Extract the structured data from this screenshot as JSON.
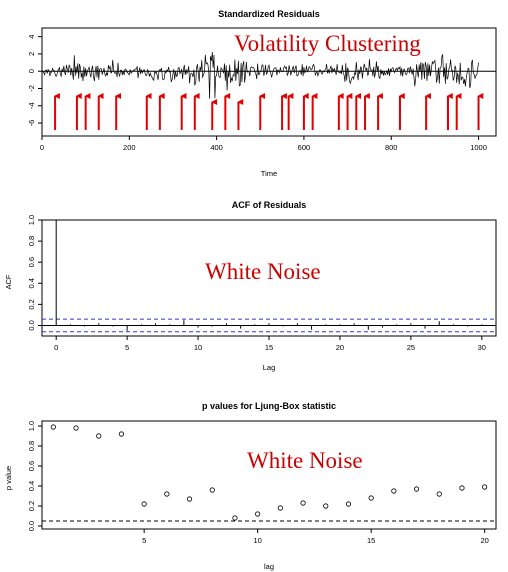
{
  "chart_data": [
    {
      "type": "line",
      "title": "Standardized Residuals",
      "xlabel": "Time",
      "ylabel": "",
      "xlim": [
        0,
        1040
      ],
      "ylim": [
        -7.5,
        5
      ],
      "xticks": [
        0,
        200,
        400,
        600,
        800,
        1000
      ],
      "yticks": [
        -6,
        -4,
        -2,
        0,
        2,
        4
      ],
      "annotation": "Volatility Clustering",
      "annotation_color": "#e00000",
      "arrow_color": "#e00000",
      "arrows_at": [
        30,
        80,
        100,
        130,
        170,
        240,
        270,
        320,
        350,
        390,
        420,
        450,
        500,
        550,
        565,
        600,
        620,
        680,
        700,
        720,
        740,
        770,
        820,
        880,
        930,
        950,
        1000
      ],
      "series": [
        {
          "x": [
            0,
            20,
            40,
            60,
            70,
            75,
            80,
            90,
            100,
            120,
            140,
            160,
            180,
            200,
            240,
            260,
            280,
            300,
            320,
            340,
            360,
            380,
            385,
            390,
            395,
            400,
            410,
            420,
            430,
            440,
            450,
            460,
            480,
            500,
            520,
            540,
            560,
            580,
            600,
            620,
            640,
            660,
            680,
            700,
            720,
            740,
            760,
            780,
            800,
            820,
            840,
            860,
            880,
            900,
            920,
            940,
            960,
            980,
            1000
          ],
          "upper": [
            0.5,
            0.8,
            1,
            1.3,
            1.8,
            3.5,
            2,
            1.5,
            1.2,
            1,
            1.3,
            1.5,
            1.2,
            1,
            0.8,
            1.2,
            1.5,
            1.3,
            1.2,
            1.5,
            1.5,
            4,
            4.5,
            5,
            4.5,
            4,
            3,
            2.5,
            2,
            1.8,
            2,
            2.5,
            1.8,
            1.5,
            1,
            0.8,
            1.2,
            1,
            1.5,
            1.2,
            1,
            1,
            1.2,
            1.5,
            1.6,
            1.5,
            1.8,
            1.2,
            1,
            1,
            1.2,
            1.8,
            2,
            2,
            3,
            2.5,
            2.2,
            2.4,
            2
          ],
          "lower": [
            -0.5,
            -0.8,
            -1,
            -1.5,
            -2,
            -2.5,
            -3,
            -2,
            -1.8,
            -1.5,
            -1.2,
            -1.5,
            -1.2,
            -1,
            -1,
            -1.4,
            -2,
            -1.5,
            -1.2,
            -1.5,
            -2,
            -4,
            -4.5,
            -5,
            -4.5,
            -4,
            -3,
            -3,
            -2.2,
            -2,
            -3,
            -2.4,
            -1.5,
            -1.2,
            -1,
            -1,
            -1.2,
            -1,
            -1.2,
            -1,
            -1,
            -1,
            -1.5,
            -2,
            -1.5,
            -1.8,
            -1.4,
            -1.2,
            -1,
            -1,
            -1.6,
            -2,
            -2.5,
            -2.5,
            -3,
            -3,
            -2.8,
            -2.6,
            -2
          ]
        }
      ]
    },
    {
      "type": "bar",
      "title": "ACF of Residuals",
      "xlabel": "Lag",
      "ylabel": "ACF",
      "xlim": [
        -1,
        31
      ],
      "ylim": [
        -0.1,
        1.0
      ],
      "xticks": [
        0,
        5,
        10,
        15,
        20,
        25,
        30
      ],
      "yticks": [
        0.0,
        0.2,
        0.4,
        0.6,
        0.8,
        1.0
      ],
      "annotation": "White Noise",
      "annotation_color": "#cc0000",
      "bound_color": "#3333cc",
      "conf_bounds": [
        0.06,
        -0.06
      ],
      "lags": [
        0,
        1,
        2,
        3,
        4,
        5,
        6,
        7,
        8,
        9,
        10,
        11,
        12,
        13,
        14,
        15,
        16,
        17,
        18,
        19,
        20,
        21,
        22,
        23,
        24,
        25,
        26,
        27,
        28,
        29,
        30
      ],
      "values": [
        1.0,
        0.01,
        -0.01,
        0.02,
        -0.01,
        -0.05,
        0.01,
        0.02,
        0.01,
        0.05,
        -0.02,
        -0.01,
        0.02,
        -0.03,
        0.01,
        0.02,
        -0.01,
        0.02,
        -0.04,
        0.01,
        0.01,
        0.02,
        -0.04,
        -0.02,
        0.01,
        0.02,
        -0.03,
        0.04,
        0.01,
        -0.01,
        0.01
      ]
    },
    {
      "type": "scatter",
      "title": "p values for Ljung-Box statistic",
      "xlabel": "lag",
      "ylabel": "p value",
      "xlim": [
        0.5,
        20.5
      ],
      "ylim": [
        -0.03,
        1.05
      ],
      "xticks": [
        5,
        10,
        15,
        20
      ],
      "yticks": [
        0.0,
        0.2,
        0.4,
        0.6,
        0.8,
        1.0
      ],
      "annotation": "White Noise",
      "annotation_color": "#cc0000",
      "reference_line": 0.05,
      "x": [
        1,
        2,
        3,
        4,
        5,
        6,
        7,
        8,
        9,
        10,
        11,
        12,
        13,
        14,
        15,
        16,
        17,
        18,
        19,
        20
      ],
      "y": [
        0.99,
        0.98,
        0.9,
        0.92,
        0.22,
        0.32,
        0.27,
        0.36,
        0.08,
        0.12,
        0.18,
        0.23,
        0.2,
        0.22,
        0.28,
        0.35,
        0.37,
        0.32,
        0.38,
        0.39
      ]
    }
  ]
}
